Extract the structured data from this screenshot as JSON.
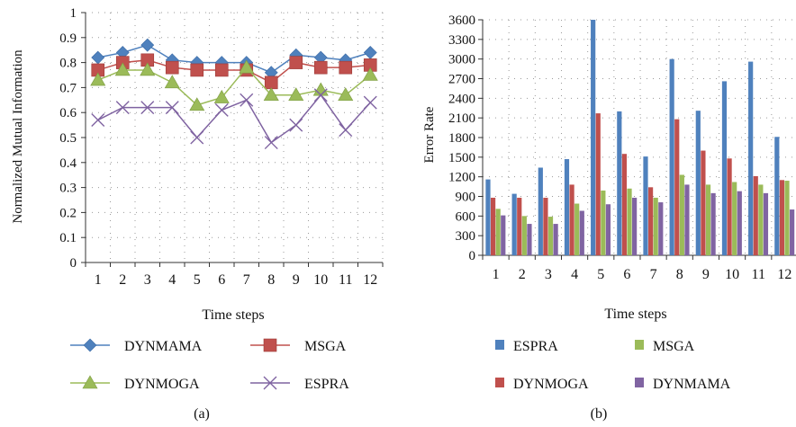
{
  "chart_data": [
    {
      "type": "line",
      "panel_label": "(a)",
      "xlabel": "Time steps",
      "ylabel": "Normalized Mutual Information",
      "x": [
        1,
        2,
        3,
        4,
        5,
        6,
        7,
        8,
        9,
        10,
        11,
        12
      ],
      "x_tick_labels": [
        "1",
        "2",
        "3",
        "4",
        "5",
        "6",
        "7",
        "8",
        "9",
        "10",
        "11",
        "12"
      ],
      "ylim": [
        0,
        1
      ],
      "y_ticks": [
        0,
        0.1,
        0.2,
        0.3,
        0.4,
        0.5,
        0.6,
        0.7,
        0.8,
        0.9,
        1
      ],
      "y_tick_labels": [
        "0",
        "0.1",
        "0.2",
        "0.3",
        "0.4",
        "0.5",
        "0.6",
        "0.7",
        "0.8",
        "0.9",
        "1"
      ],
      "grid": "dotted",
      "legend_position": "bottom",
      "series": [
        {
          "name": "DYNMAMA",
          "color": "#4f81bd",
          "marker": "diamond",
          "values": [
            0.82,
            0.84,
            0.87,
            0.81,
            0.8,
            0.8,
            0.8,
            0.76,
            0.83,
            0.82,
            0.81,
            0.84
          ]
        },
        {
          "name": "MSGA",
          "color": "#c0504d",
          "marker": "square",
          "values": [
            0.77,
            0.8,
            0.81,
            0.78,
            0.77,
            0.77,
            0.77,
            0.72,
            0.8,
            0.78,
            0.78,
            0.79
          ]
        },
        {
          "name": "DYNMOGA",
          "color": "#9bbb59",
          "marker": "triangle",
          "values": [
            0.73,
            0.77,
            0.77,
            0.72,
            0.63,
            0.66,
            0.78,
            0.67,
            0.67,
            0.69,
            0.67,
            0.75
          ]
        },
        {
          "name": "ESPRA",
          "color": "#7f63a1",
          "marker": "x",
          "values": [
            0.57,
            0.62,
            0.62,
            0.62,
            0.5,
            0.61,
            0.65,
            0.48,
            0.55,
            0.67,
            0.53,
            0.64
          ]
        }
      ]
    },
    {
      "type": "bar",
      "panel_label": "(b)",
      "xlabel": "Time steps",
      "ylabel": "Error Rate",
      "categories": [
        "1",
        "2",
        "3",
        "4",
        "5",
        "6",
        "7",
        "8",
        "9",
        "10",
        "11",
        "12"
      ],
      "ylim": [
        0,
        3600
      ],
      "y_ticks": [
        0,
        300,
        600,
        900,
        1200,
        1500,
        1800,
        2100,
        2400,
        2700,
        3000,
        3300,
        3600
      ],
      "y_tick_labels": [
        "0",
        "300",
        "600",
        "900",
        "1200",
        "1500",
        "1800",
        "2100",
        "2400",
        "2700",
        "3000",
        "3300",
        "3600"
      ],
      "grid": "dotted",
      "legend_position": "bottom",
      "series": [
        {
          "name": "ESPRA",
          "color": "#4f81bd",
          "values": [
            1160,
            940,
            1340,
            1470,
            3600,
            2200,
            1510,
            3000,
            2210,
            2660,
            2960,
            1810
          ]
        },
        {
          "name": "DYNMOGA",
          "color": "#c0504d",
          "values": [
            880,
            880,
            880,
            1080,
            2170,
            1550,
            1040,
            2080,
            1600,
            1480,
            1210,
            1150
          ]
        },
        {
          "name": "MSGA",
          "color": "#9bbb59",
          "values": [
            710,
            600,
            590,
            790,
            990,
            1020,
            880,
            1230,
            1080,
            1120,
            1080,
            1140
          ]
        },
        {
          "name": "DYNMAMA",
          "color": "#8064a2",
          "values": [
            610,
            480,
            480,
            680,
            780,
            880,
            810,
            1080,
            950,
            980,
            950,
            700
          ]
        }
      ]
    }
  ]
}
